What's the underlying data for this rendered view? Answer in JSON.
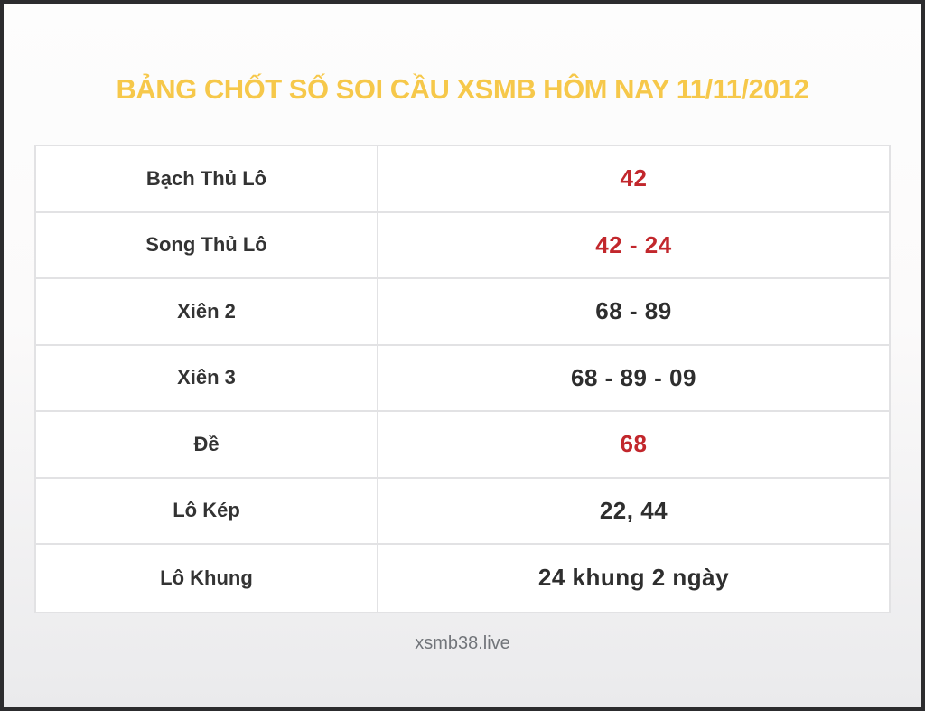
{
  "page": {
    "title": "BẢNG CHỐT SỐ SOI CẦU XSMB HÔM NAY 11/11/2012",
    "footer": "xsmb38.live"
  },
  "colors": {
    "title_yellow": "#f6c84a",
    "value_red": "#c2272c",
    "text_dark": "#333333",
    "table_border": "#e2e2e4",
    "frame_border": "#2c2c2e"
  },
  "table": {
    "rows": [
      {
        "label": "Bạch Thủ Lô",
        "value": "42",
        "highlight": true
      },
      {
        "label": "Song Thủ Lô",
        "value": "42 - 24",
        "highlight": true
      },
      {
        "label": "Xiên 2",
        "value": "68 - 89",
        "highlight": false
      },
      {
        "label": "Xiên 3",
        "value": "68 - 89 - 09",
        "highlight": false
      },
      {
        "label": "Đề",
        "value": "68",
        "highlight": true
      },
      {
        "label": "Lô Kép",
        "value": "22, 44",
        "highlight": false
      },
      {
        "label": "Lô Khung",
        "value": "24 khung 2 ngày",
        "highlight": false
      }
    ]
  }
}
